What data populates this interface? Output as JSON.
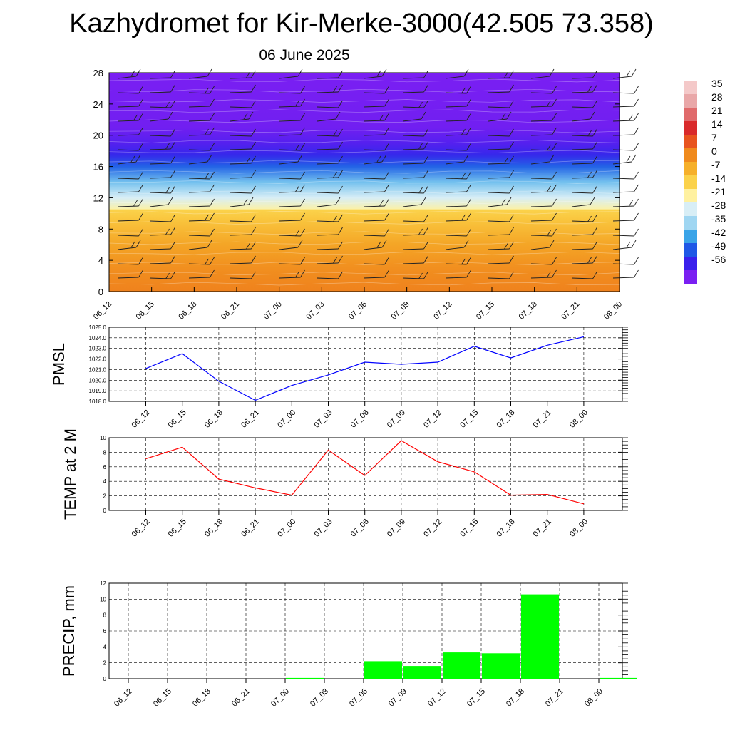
{
  "title": "Kazhydromet for Kir-Merke-3000(42.505 73.358)",
  "subtitle": "06 June 2025",
  "chart_data": [
    {
      "type": "heatmap",
      "x_categories": [
        "06_12",
        "06_15",
        "06_18",
        "06_21",
        "07_00",
        "07_03",
        "07_06",
        "07_09",
        "07_12",
        "07_15",
        "07_18",
        "07_21",
        "08_00"
      ],
      "y_ticks": [
        0,
        4,
        8,
        12,
        16,
        20,
        24,
        28
      ],
      "ylim": [
        0,
        28
      ],
      "colorbar": {
        "labels": [
          "35",
          "28",
          "21",
          "14",
          "7",
          "0",
          "-7",
          "-14",
          "-21",
          "-28",
          "-35",
          "-42",
          "-49",
          "-56"
        ],
        "colors": [
          "#f4c9c9",
          "#e9a7a8",
          "#e06a6b",
          "#d92a2b",
          "#e8541f",
          "#f08a1d",
          "#f6b02a",
          "#fbd24a",
          "#fff1a0",
          "#d8eef6",
          "#9fd6f2",
          "#3aa4e8",
          "#1f58e6",
          "#3a20ec",
          "#7a1ff2"
        ]
      },
      "levels": [
        {
          "y": 0,
          "value": 4
        },
        {
          "y": 3,
          "value": 2
        },
        {
          "y": 6,
          "value": -2
        },
        {
          "y": 9,
          "value": -8
        },
        {
          "y": 10.4,
          "value": -11
        },
        {
          "y": 10.6,
          "value": -19
        },
        {
          "y": 12,
          "value": -25
        },
        {
          "y": 14,
          "value": -35
        },
        {
          "y": 16,
          "value": -45
        },
        {
          "y": 17.5,
          "value": -52
        },
        {
          "y": 19,
          "value": -56
        },
        {
          "y": 21,
          "value": -59
        },
        {
          "y": 28,
          "value": -60
        }
      ]
    },
    {
      "type": "line",
      "ylabel": "PMSL",
      "categories": [
        "06_12",
        "06_15",
        "06_18",
        "06_21",
        "07_00",
        "07_03",
        "07_06",
        "07_09",
        "07_12",
        "07_15",
        "07_18",
        "07_21",
        "08_00"
      ],
      "y_ticks": [
        "1018.0",
        "1019.0",
        "1020.0",
        "1021.0",
        "1022.0",
        "1023.0",
        "1024.0",
        "1025.0"
      ],
      "ylim": [
        1018,
        1025
      ],
      "series": [
        {
          "color": "#0000ff",
          "values": [
            1021.1,
            1022.5,
            1019.9,
            1018.1,
            1019.5,
            1020.5,
            1021.7,
            1021.5,
            1021.7,
            1023.2,
            1022.1,
            1023.3,
            1024.1
          ]
        }
      ]
    },
    {
      "type": "line",
      "ylabel": "TEMP at 2 M",
      "categories": [
        "06_12",
        "06_15",
        "06_18",
        "06_21",
        "07_00",
        "07_03",
        "07_06",
        "07_09",
        "07_12",
        "07_15",
        "07_18",
        "07_21",
        "08_00"
      ],
      "y_ticks": [
        "0",
        "2",
        "4",
        "6",
        "8",
        "10"
      ],
      "ylim": [
        0,
        10
      ],
      "series": [
        {
          "color": "#ff0000",
          "values": [
            7.1,
            8.7,
            4.3,
            3.1,
            2.1,
            8.3,
            4.8,
            9.6,
            6.7,
            5.3,
            2.1,
            2.2,
            0.9
          ]
        }
      ]
    },
    {
      "type": "bar",
      "ylabel": "PRECIP, mm",
      "categories": [
        "06_12",
        "06_15",
        "06_18",
        "06_21",
        "07_00",
        "07_03",
        "07_06",
        "07_09",
        "07_12",
        "07_15",
        "07_18",
        "07_21",
        "08_00"
      ],
      "y_ticks": [
        "0",
        "2",
        "4",
        "6",
        "8",
        "10",
        "12"
      ],
      "ylim": [
        0,
        12
      ],
      "bar_color": "#00ff00",
      "values": [
        0,
        0,
        0,
        0,
        0.1,
        0,
        2.2,
        1.6,
        3.3,
        3.2,
        10.6,
        0,
        0.1
      ]
    }
  ]
}
